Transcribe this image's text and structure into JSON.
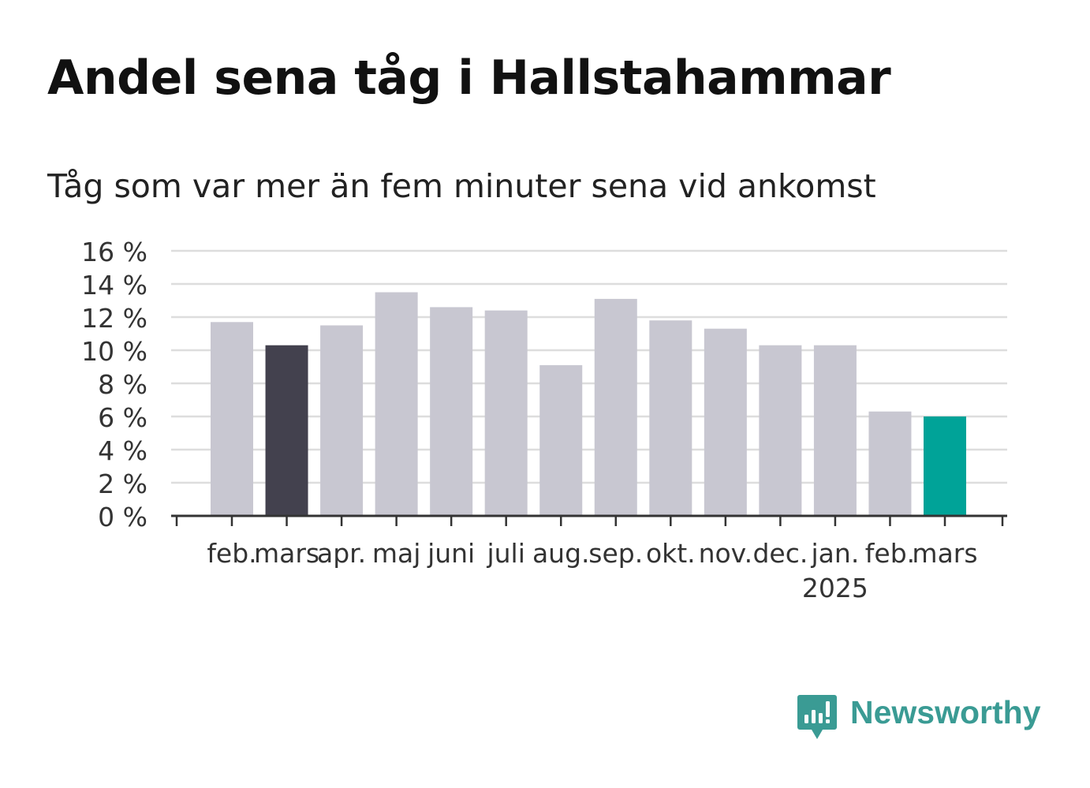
{
  "title": "Andel sena tåg i Hallstahammar",
  "subtitle": "Tåg som var mer än fem minuter sena vid ankomst",
  "brand": {
    "name": "Newsworthy",
    "color": "#3a9b94",
    "icon": "bar-chart-speech-bubble-icon"
  },
  "colors": {
    "default_bar": "#c8c7d1",
    "highlight_previous_year": "#43414e",
    "highlight_latest": "#00a398",
    "grid": "#dddddd",
    "axis": "#333333"
  },
  "chart_data": {
    "type": "bar",
    "categories": [
      "feb.",
      "mars",
      "apr.",
      "maj",
      "juni",
      "juli",
      "aug.",
      "sep.",
      "okt.",
      "nov.",
      "dec.",
      "jan.",
      "feb.",
      "mars"
    ],
    "category_sublabels": [
      "",
      "",
      "",
      "",
      "",
      "",
      "",
      "",
      "",
      "",
      "",
      "2025",
      "",
      ""
    ],
    "values": [
      11.7,
      10.3,
      11.5,
      13.5,
      12.6,
      12.4,
      9.1,
      13.1,
      11.8,
      11.3,
      10.3,
      10.3,
      6.3,
      6.0
    ],
    "highlight": [
      "none",
      "previous_year",
      "none",
      "none",
      "none",
      "none",
      "none",
      "none",
      "none",
      "none",
      "none",
      "none",
      "none",
      "latest"
    ],
    "ylim": [
      0,
      16
    ],
    "yticks": [
      0,
      2,
      4,
      6,
      8,
      10,
      12,
      14,
      16
    ],
    "ytick_labels": [
      "0 %",
      "2 %",
      "4 %",
      "6 %",
      "8 %",
      "10 %",
      "12 %",
      "14 %",
      "16 %"
    ],
    "grid": true,
    "xlabel": "",
    "ylabel": ""
  }
}
